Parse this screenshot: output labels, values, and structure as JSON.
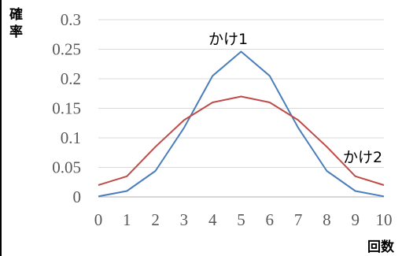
{
  "chart_data": {
    "type": "line",
    "title": "",
    "xlabel": "回数",
    "ylabel": "確率",
    "x": [
      0,
      1,
      2,
      3,
      4,
      5,
      6,
      7,
      8,
      9,
      10
    ],
    "xlim": [
      0,
      10
    ],
    "ylim": [
      0,
      0.3
    ],
    "x_tick_labels": [
      "0",
      "1",
      "2",
      "3",
      "4",
      "5",
      "6",
      "7",
      "8",
      "9",
      "10"
    ],
    "y_tick_labels": [
      "0",
      "0.05",
      "0.1",
      "0.15",
      "0.2",
      "0.25",
      "0.3"
    ],
    "y_ticks": [
      0,
      0.05,
      0.1,
      0.15,
      0.2,
      0.25,
      0.3
    ],
    "grid": "horizontal",
    "legend": "none",
    "series": [
      {
        "name": "かけ1",
        "color": "#4a7ebb",
        "values": [
          0.001,
          0.01,
          0.044,
          0.117,
          0.205,
          0.246,
          0.205,
          0.117,
          0.044,
          0.01,
          0.001
        ]
      },
      {
        "name": "かけ2",
        "color": "#be4b48",
        "values": [
          0.02,
          0.035,
          0.085,
          0.13,
          0.16,
          0.17,
          0.16,
          0.13,
          0.085,
          0.035,
          0.02
        ]
      }
    ]
  }
}
